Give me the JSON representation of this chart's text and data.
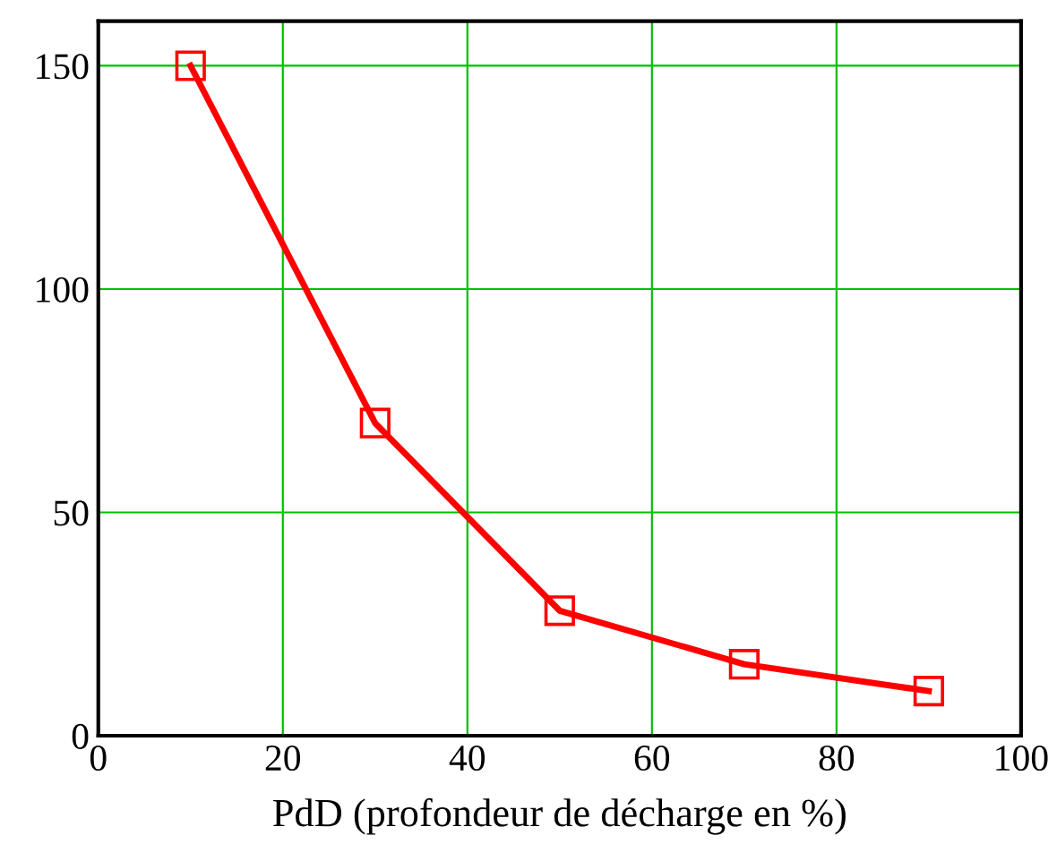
{
  "chart_data": {
    "type": "line",
    "xlabel": "PdD (profondeur de décharge en %)",
    "x": [
      10,
      30,
      50,
      70,
      90
    ],
    "series": [
      {
        "color": "#ff0000",
        "values": [
          150,
          70,
          28,
          16,
          10
        ]
      }
    ],
    "marker": "square",
    "line_style": "solid",
    "xlim": [
      0,
      100
    ],
    "xticks": [
      0,
      20,
      40,
      60,
      80,
      100
    ],
    "ylim": [
      0,
      160
    ],
    "yticks": [
      0,
      50,
      100,
      150
    ],
    "grid": true
  }
}
